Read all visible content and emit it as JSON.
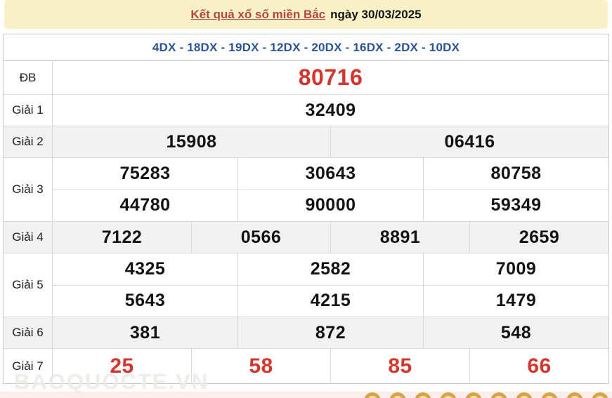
{
  "header": {
    "title": "Kết quả xổ số miền Bắc",
    "date": "ngày 30/03/2025"
  },
  "station_codes": "4DX - 18DX - 19DX - 12DX - 20DX - 16DX - 2DX - 10DX",
  "results": {
    "rows": [
      {
        "label": "ĐB",
        "variant": "special",
        "lines": [
          [
            "80716"
          ]
        ]
      },
      {
        "label": "Giải 1",
        "variant": "normal",
        "lines": [
          [
            "32409"
          ]
        ]
      },
      {
        "label": "Giải 2",
        "variant": "normal",
        "lines": [
          [
            "15908",
            "06416"
          ]
        ]
      },
      {
        "label": "Giải 3",
        "variant": "normal",
        "lines": [
          [
            "75283",
            "30643",
            "80758"
          ],
          [
            "44780",
            "90000",
            "59349"
          ]
        ]
      },
      {
        "label": "Giải 4",
        "variant": "normal",
        "lines": [
          [
            "7122",
            "0566",
            "8891",
            "2659"
          ]
        ]
      },
      {
        "label": "Giải 5",
        "variant": "normal",
        "lines": [
          [
            "4325",
            "2582",
            "7009"
          ],
          [
            "5643",
            "4215",
            "1479"
          ]
        ]
      },
      {
        "label": "Giải 6",
        "variant": "normal",
        "lines": [
          [
            "381",
            "872",
            "548"
          ]
        ]
      },
      {
        "label": "Giải 7",
        "variant": "red",
        "lines": [
          [
            "25",
            "58",
            "85",
            "66"
          ]
        ]
      }
    ]
  },
  "watermark": "BAOQUOCTE.VN",
  "footer": {
    "ball_count": 10
  },
  "colors": {
    "banner_bg": "#f9f1c6",
    "title_red": "#b5463c",
    "codes_blue": "#2b5394",
    "number_red": "#d4362e",
    "shaded_row": "#f1f1f1",
    "strip_bg": "#fbeeea",
    "ball_gold": "#d8a44a"
  }
}
